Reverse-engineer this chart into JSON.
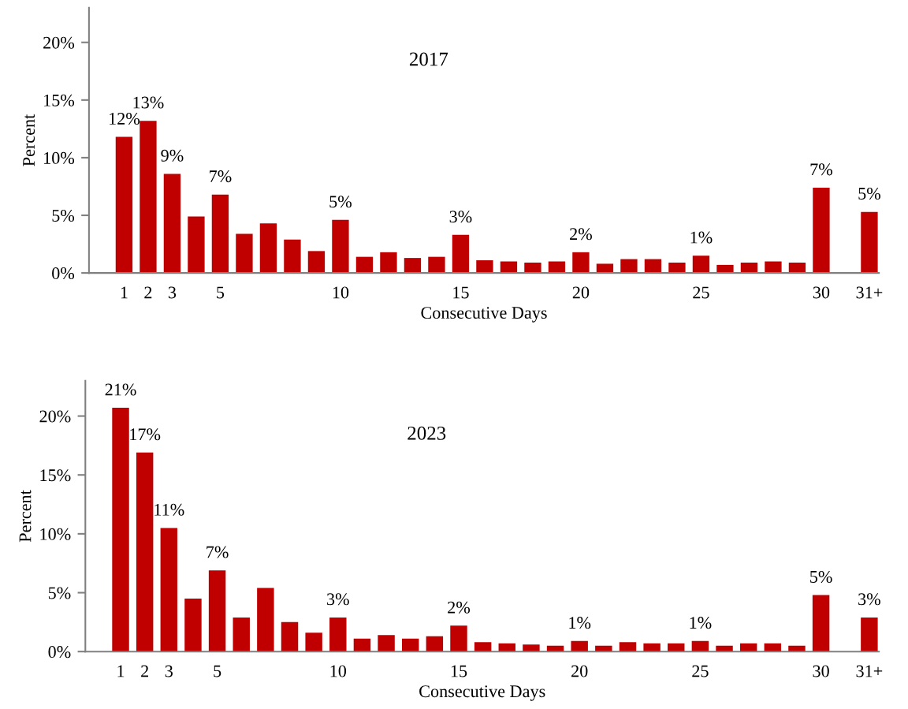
{
  "chart_data": [
    {
      "type": "bar",
      "title": "2017",
      "xlabel": "Consecutive Days",
      "ylabel": "Percent",
      "categories": [
        "1",
        "2",
        "3",
        null,
        "5",
        null,
        null,
        null,
        null,
        "10",
        null,
        null,
        null,
        null,
        "15",
        null,
        null,
        null,
        null,
        "20",
        null,
        null,
        null,
        null,
        "25",
        null,
        null,
        null,
        null,
        "30",
        null,
        "31+"
      ],
      "series": [
        {
          "color": "#c00000",
          "values": [
            11.8,
            13.2,
            8.6,
            4.9,
            6.8,
            3.4,
            4.3,
            2.9,
            1.9,
            4.6,
            1.4,
            1.8,
            1.3,
            1.4,
            3.3,
            1.1,
            1.0,
            0.9,
            1.0,
            1.8,
            0.8,
            1.2,
            1.2,
            0.9,
            1.5,
            0.7,
            0.9,
            1.0,
            0.9,
            7.4,
            null,
            5.3
          ],
          "value_labels": [
            "12%",
            "13%",
            "9%",
            null,
            "7%",
            null,
            null,
            null,
            null,
            "5%",
            null,
            null,
            null,
            null,
            "3%",
            null,
            null,
            null,
            null,
            "2%",
            null,
            null,
            null,
            null,
            "1%",
            null,
            null,
            null,
            null,
            "7%",
            null,
            "5%"
          ]
        }
      ],
      "ylim": [
        0,
        23
      ],
      "yticks": [
        {
          "value": 0,
          "label": "0%"
        },
        {
          "value": 5,
          "label": "5%"
        },
        {
          "value": 10,
          "label": "10%"
        },
        {
          "value": 15,
          "label": "15%"
        },
        {
          "value": 20,
          "label": "20%"
        }
      ],
      "grid": false
    },
    {
      "type": "bar",
      "title": "2023",
      "xlabel": "Consecutive Days",
      "ylabel": "Percent",
      "categories": [
        "1",
        "2",
        "3",
        null,
        "5",
        null,
        null,
        null,
        null,
        "10",
        null,
        null,
        null,
        null,
        "15",
        null,
        null,
        null,
        null,
        "20",
        null,
        null,
        null,
        null,
        "25",
        null,
        null,
        null,
        null,
        "30",
        null,
        "31+"
      ],
      "series": [
        {
          "color": "#c00000",
          "values": [
            20.7,
            16.9,
            10.5,
            4.5,
            6.9,
            2.9,
            5.4,
            2.5,
            1.6,
            2.9,
            1.1,
            1.4,
            1.1,
            1.3,
            2.2,
            0.8,
            0.7,
            0.6,
            0.5,
            0.9,
            0.5,
            0.8,
            0.7,
            0.7,
            0.9,
            0.5,
            0.7,
            0.7,
            0.5,
            4.8,
            null,
            2.9
          ],
          "value_labels": [
            "21%",
            "17%",
            "11%",
            null,
            "7%",
            null,
            null,
            null,
            null,
            "3%",
            null,
            null,
            null,
            null,
            "2%",
            null,
            null,
            null,
            null,
            "1%",
            null,
            null,
            null,
            null,
            "1%",
            null,
            null,
            null,
            null,
            "5%",
            null,
            "3%"
          ]
        }
      ],
      "ylim": [
        0,
        23
      ],
      "yticks": [
        {
          "value": 0,
          "label": "0%"
        },
        {
          "value": 5,
          "label": "5%"
        },
        {
          "value": 10,
          "label": "10%"
        },
        {
          "value": 15,
          "label": "15%"
        },
        {
          "value": 20,
          "label": "20%"
        }
      ],
      "grid": false
    }
  ]
}
